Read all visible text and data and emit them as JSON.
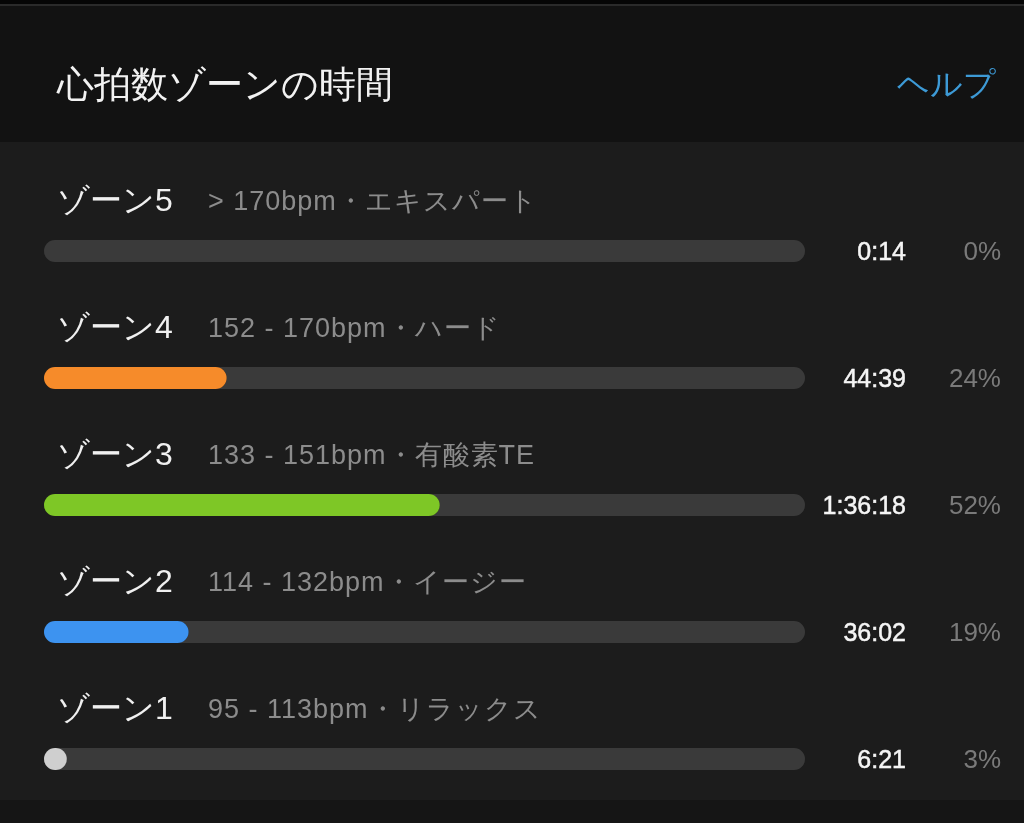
{
  "chart_data": {
    "type": "bar",
    "orientation": "horizontal",
    "title": "心拍数ゾーンの時間",
    "categories": [
      "ゾーン5",
      "ゾーン4",
      "ゾーン3",
      "ゾーン2",
      "ゾーン1"
    ],
    "values": [
      0,
      24,
      52,
      19,
      3
    ],
    "colors": [
      null,
      "#f68b2a",
      "#7ec726",
      "#3d93f0",
      "#cfcfcf"
    ],
    "xlim": [
      0,
      100
    ],
    "tick_labels": "y",
    "value_labels": [
      "0%",
      "24%",
      "52%",
      "19%",
      "3%"
    ],
    "annotations": [
      "ヘルプ",
      "> 170bpm・エキスパート",
      "0:14",
      "152 - 170bpm・ハード",
      "44:39",
      "133 - 151bpm・有酸素TE",
      "1:36:18",
      "114 - 132bpm・イージー",
      "36:02",
      "95 - 113bpm・リラックス",
      "6:21"
    ]
  }
}
